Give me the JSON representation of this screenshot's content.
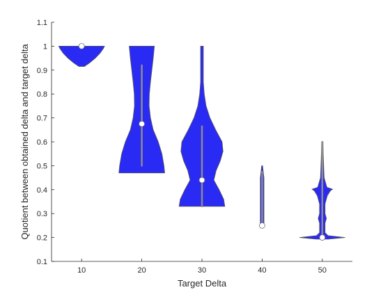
{
  "chart_data": {
    "type": "violin",
    "xlabel": "Target Delta",
    "ylabel": "Quotient between obtained delta and target delta",
    "ylim": [
      0.1,
      1.1
    ],
    "categories": [
      "10",
      "20",
      "30",
      "40",
      "50"
    ],
    "y_ticks": [
      "0.1",
      "0.2",
      "0.3",
      "0.4",
      "0.5",
      "0.6",
      "0.7",
      "0.8",
      "0.9",
      "1",
      "1.1"
    ],
    "colors": {
      "violin": "#2a2af5",
      "whisker": "#8c8c8c",
      "median_fill": "#ffffff",
      "axis": "#262626"
    },
    "groups": [
      {
        "category": "10",
        "median": 1.0,
        "whisker_low": 1.0,
        "whisker_high": 1.0,
        "density": [
          [
            0.915,
            0.12
          ],
          [
            0.93,
            0.35
          ],
          [
            0.95,
            0.6
          ],
          [
            0.97,
            0.8
          ],
          [
            0.99,
            0.95
          ],
          [
            1.0,
            1.0
          ]
        ]
      },
      {
        "category": "20",
        "median": 0.675,
        "whisker_low": 0.5,
        "whisker_high": 0.92,
        "density": [
          [
            0.47,
            1.0
          ],
          [
            0.5,
            0.97
          ],
          [
            0.55,
            0.88
          ],
          [
            0.6,
            0.72
          ],
          [
            0.65,
            0.5
          ],
          [
            0.7,
            0.38
          ],
          [
            0.75,
            0.32
          ],
          [
            0.8,
            0.33
          ],
          [
            0.85,
            0.38
          ],
          [
            0.9,
            0.44
          ],
          [
            0.95,
            0.5
          ],
          [
            1.0,
            0.55
          ]
        ]
      },
      {
        "category": "30",
        "median": 0.44,
        "whisker_low": 0.33,
        "whisker_high": 0.665,
        "density": [
          [
            0.33,
            1.0
          ],
          [
            0.36,
            0.95
          ],
          [
            0.4,
            0.75
          ],
          [
            0.44,
            0.52
          ],
          [
            0.48,
            0.62
          ],
          [
            0.52,
            0.8
          ],
          [
            0.56,
            0.92
          ],
          [
            0.6,
            0.88
          ],
          [
            0.65,
            0.6
          ],
          [
            0.7,
            0.35
          ],
          [
            0.75,
            0.18
          ],
          [
            0.8,
            0.1
          ],
          [
            0.85,
            0.06
          ],
          [
            0.9,
            0.06
          ],
          [
            0.95,
            0.06
          ],
          [
            1.0,
            0.06
          ]
        ]
      },
      {
        "category": "40",
        "median": 0.25,
        "whisker_low": 0.25,
        "whisker_high": 0.475,
        "density": [
          [
            0.25,
            0.08
          ],
          [
            0.3,
            0.08
          ],
          [
            0.35,
            0.08
          ],
          [
            0.4,
            0.08
          ],
          [
            0.45,
            0.08
          ],
          [
            0.475,
            0.05
          ],
          [
            0.5,
            0.02
          ]
        ]
      },
      {
        "category": "50",
        "median": 0.2,
        "whisker_low": 0.2,
        "whisker_high": 0.6,
        "density": [
          [
            0.193,
            0.25
          ],
          [
            0.2,
            1.0
          ],
          [
            0.208,
            0.25
          ],
          [
            0.22,
            0.12
          ],
          [
            0.26,
            0.12
          ],
          [
            0.28,
            0.18
          ],
          [
            0.3,
            0.12
          ],
          [
            0.34,
            0.12
          ],
          [
            0.375,
            0.22
          ],
          [
            0.395,
            0.35
          ],
          [
            0.402,
            0.45
          ],
          [
            0.41,
            0.2
          ],
          [
            0.45,
            0.08
          ],
          [
            0.5,
            0.06
          ],
          [
            0.55,
            0.04
          ],
          [
            0.6,
            0.03
          ]
        ]
      }
    ]
  }
}
